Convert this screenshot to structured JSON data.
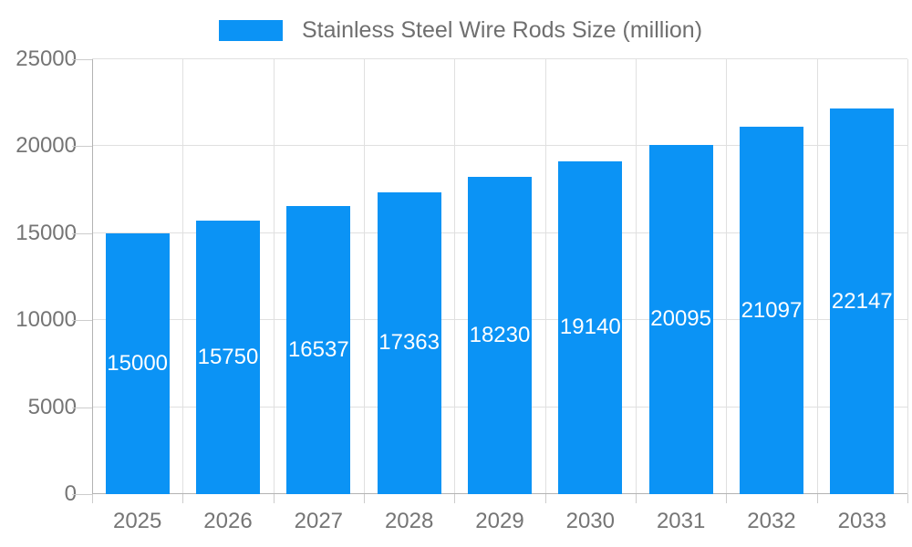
{
  "chart_data": {
    "type": "bar",
    "title": "",
    "categories": [
      "2025",
      "2026",
      "2027",
      "2028",
      "2029",
      "2030",
      "2031",
      "2032",
      "2033"
    ],
    "series": [
      {
        "name": "Stainless Steel Wire Rods Size (million)",
        "values": [
          15000,
          15750,
          16537,
          17363,
          18230,
          19140,
          20095,
          21097,
          22147
        ]
      }
    ],
    "data_labels": [
      "15000",
      "15750",
      "16537",
      "17363",
      "18230",
      "19140",
      "20095",
      "21097",
      "22147"
    ],
    "xlabel": "",
    "ylabel": "",
    "ylim": [
      0,
      25000
    ],
    "yticks": [
      0,
      5000,
      10000,
      15000,
      20000,
      25000
    ],
    "ytick_labels": [
      "0",
      "5000",
      "10000",
      "15000",
      "20000",
      "25000"
    ],
    "grid": true,
    "legend_position": "top",
    "colors": {
      "bar": "#0b93f5",
      "bar_value_text": "#ffffff",
      "axis_text": "#757575",
      "legend_text": "#6f6f6f",
      "grid_line": "#e0e0e0",
      "axis_line": "#b3b3b3",
      "tick_mark": "#cccccc",
      "background": "#ffffff"
    }
  }
}
